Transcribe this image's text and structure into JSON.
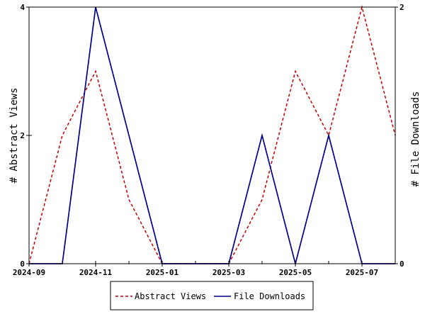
{
  "chart_data": {
    "type": "line",
    "x": [
      "2024-09",
      "2024-10",
      "2024-11",
      "2024-12",
      "2025-01",
      "2025-02",
      "2025-03",
      "2025-04",
      "2025-05",
      "2025-06",
      "2025-07",
      "2025-08"
    ],
    "x_tick_labels": [
      "2024-09",
      "2024-11",
      "2025-01",
      "2025-03",
      "2025-05",
      "2025-07"
    ],
    "series": [
      {
        "name": "Abstract Views",
        "axis": "left",
        "color": "#c00000",
        "dash": "dashed",
        "values": [
          0,
          2,
          3,
          1,
          0,
          0,
          0,
          1,
          3,
          2,
          4,
          2
        ]
      },
      {
        "name": "File Downloads",
        "axis": "right",
        "color": "#00008b",
        "dash": "solid",
        "values": [
          0,
          0,
          2,
          1,
          0,
          0,
          0,
          1,
          0,
          1,
          0,
          0
        ]
      }
    ],
    "ylabel": "# Abstract Views",
    "ylabel_right": "# File Downloads",
    "ylim": [
      0,
      4
    ],
    "ylim_right": [
      0,
      2
    ],
    "y_ticks": [
      0,
      2,
      4
    ],
    "y_ticks_right": [
      0,
      2
    ],
    "legend_position": "bottom",
    "grid": false
  }
}
